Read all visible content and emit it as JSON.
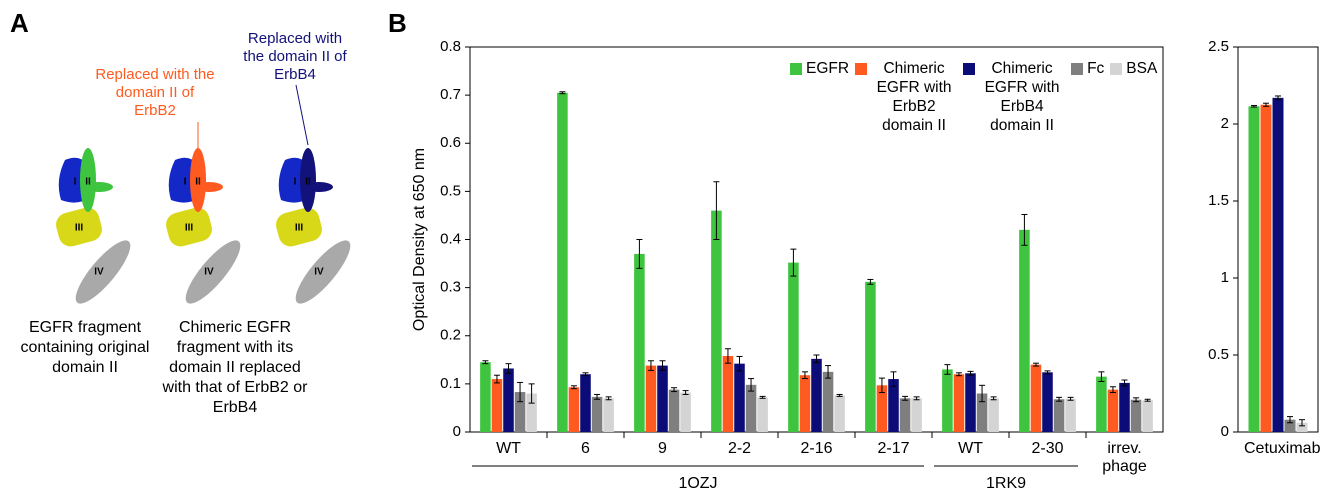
{
  "panel_labels": [
    "A",
    "B"
  ],
  "diagram": {
    "domains": [
      "I",
      "II",
      "III",
      "IV"
    ],
    "callouts": [
      {
        "text": "Replaced with the domain II of ErbB2",
        "color": "#ff5a1f"
      },
      {
        "text": "Replaced with the domain II of ErbB4",
        "color": "#12127a"
      }
    ],
    "captions": [
      "EGFR fragment containing original domain II",
      "Chimeric EGFR fragment with its domain II replaced with that of ErbB2 or ErbB4"
    ]
  },
  "chart_data": [
    {
      "type": "bar",
      "ylabel": "Optical Density at 650 nm",
      "categories": [
        "WT",
        "6",
        "9",
        "2-2",
        "2-16",
        "2-17",
        "WT",
        "2-30",
        "irrev. phage"
      ],
      "groups": [
        "1OZJ",
        "1OZJ",
        "1OZJ",
        "1OZJ",
        "1OZJ",
        "1OZJ",
        "1RK9",
        "1RK9",
        null
      ],
      "legend": "upper right",
      "series": [
        {
          "name": "EGFR",
          "color": "#3ec43e",
          "values": [
            0.145,
            0.705,
            0.37,
            0.46,
            0.352,
            0.312,
            0.13,
            0.42,
            0.115
          ],
          "errors": [
            0.003,
            0.002,
            0.03,
            0.06,
            0.028,
            0.005,
            0.01,
            0.032,
            0.01
          ]
        },
        {
          "name": "Chimeric EGFR with ErbB2 domain II",
          "color": "#ff5a1f",
          "values": [
            0.11,
            0.093,
            0.138,
            0.158,
            0.118,
            0.097,
            0.12,
            0.14,
            0.088
          ],
          "errors": [
            0.008,
            0.003,
            0.01,
            0.015,
            0.007,
            0.015,
            0.003,
            0.003,
            0.006
          ]
        },
        {
          "name": "Chimeric EGFR with ErbB4 domain II",
          "color": "#0c0c78",
          "values": [
            0.132,
            0.12,
            0.138,
            0.142,
            0.152,
            0.11,
            0.122,
            0.124,
            0.102
          ],
          "errors": [
            0.01,
            0.003,
            0.01,
            0.015,
            0.008,
            0.015,
            0.004,
            0.003,
            0.006
          ]
        },
        {
          "name": "Fc",
          "color": "#7f7f7f",
          "values": [
            0.083,
            0.073,
            0.088,
            0.098,
            0.125,
            0.07,
            0.08,
            0.068,
            0.067
          ],
          "errors": [
            0.02,
            0.005,
            0.004,
            0.013,
            0.013,
            0.004,
            0.017,
            0.004,
            0.004
          ]
        },
        {
          "name": "BSA",
          "color": "#d4d4d4",
          "values": [
            0.08,
            0.07,
            0.082,
            0.072,
            0.076,
            0.07,
            0.07,
            0.069,
            0.066
          ],
          "errors": [
            0.02,
            0.003,
            0.004,
            0.002,
            0.002,
            0.003,
            0.003,
            0.003,
            0.002
          ]
        }
      ],
      "ylim": [
        0,
        0.8
      ],
      "yticks": [
        0,
        0.1,
        0.2,
        0.3,
        0.4,
        0.5,
        0.6,
        0.7,
        0.8
      ]
    },
    {
      "type": "bar",
      "categories": [
        "Cetuximab"
      ],
      "series": [
        {
          "color": "#3ec43e",
          "values": [
            2.115
          ],
          "errors": [
            0.005
          ]
        },
        {
          "color": "#ff5a1f",
          "values": [
            2.125
          ],
          "errors": [
            0.01
          ]
        },
        {
          "color": "#0c0c78",
          "values": [
            2.17
          ],
          "errors": [
            0.012
          ]
        },
        {
          "color": "#7f7f7f",
          "values": [
            0.08
          ],
          "errors": [
            0.02
          ]
        },
        {
          "color": "#d4d4d4",
          "values": [
            0.06
          ],
          "errors": [
            0.02
          ]
        }
      ],
      "ylim": [
        0,
        2.5
      ],
      "yticks": [
        0,
        0.5,
        1,
        1.5,
        2,
        2.5
      ]
    }
  ]
}
